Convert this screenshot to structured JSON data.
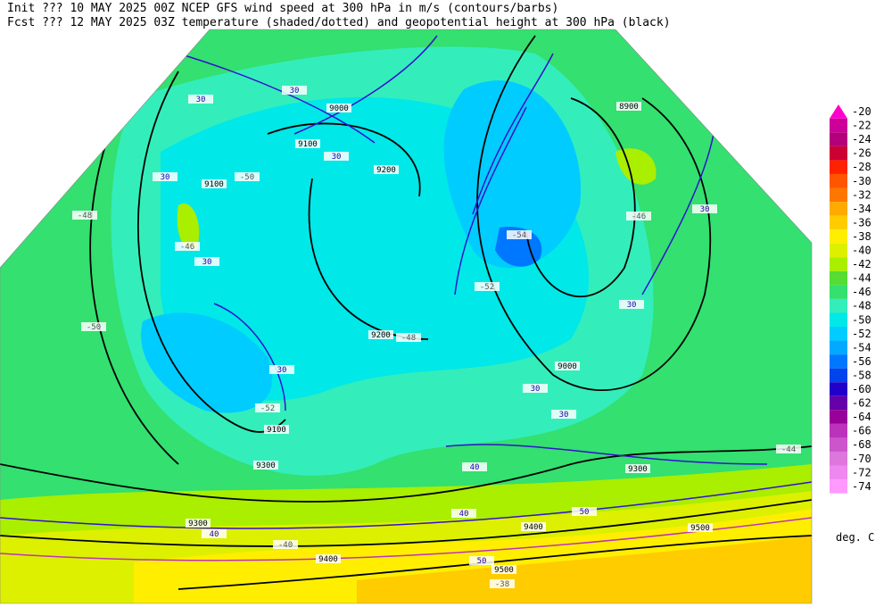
{
  "header": {
    "line1": "Init  ??? 10 MAY 2025 00Z  NCEP GFS wind speed at 300 hPa in m/s (contours/barbs)",
    "line2": "Fcst ??? 12 MAY 2025 03Z  temperature (shaded/dotted) and geopotential height at 300 hPa (black)"
  },
  "colorbar": {
    "levels": [
      -20,
      -22,
      -24,
      -26,
      -28,
      -30,
      -32,
      -34,
      -36,
      -38,
      -40,
      -42,
      -44,
      -46,
      -48,
      -50,
      -52,
      -54,
      -56,
      -58,
      -60,
      -62,
      -64,
      -66,
      -68,
      -70,
      -72,
      -74
    ],
    "colors": [
      "#ff00cc",
      "#cc0099",
      "#b3007a",
      "#cc0033",
      "#ff2200",
      "#ff5500",
      "#ff7700",
      "#ffaa00",
      "#ffcc00",
      "#ffee00",
      "#ddf000",
      "#aaee00",
      "#55dd33",
      "#33e070",
      "#33eebb",
      "#00e8e8",
      "#00ccff",
      "#00aaff",
      "#0077ff",
      "#0044ee",
      "#2200cc",
      "#6600aa",
      "#990099",
      "#bb33bb",
      "#cc55cc",
      "#dd77dd",
      "#ee88ee",
      "#ff99ff"
    ],
    "unit": "deg. C"
  },
  "map": {
    "height_labels": [
      "9000",
      "9100",
      "9100",
      "9100",
      "9200",
      "9200",
      "8900",
      "9000",
      "9300",
      "9300",
      "9300",
      "9400",
      "9400",
      "9500",
      "9500"
    ],
    "wind_labels": [
      "30",
      "30",
      "30",
      "30",
      "30",
      "30",
      "30",
      "30",
      "30",
      "30",
      "40",
      "40",
      "40",
      "50",
      "50"
    ],
    "temperature_labels": [
      "-48",
      "-50",
      "-52",
      "-54",
      "-46",
      "-46",
      "-48",
      "-52",
      "-50",
      "-44",
      "-38",
      "-40"
    ]
  }
}
